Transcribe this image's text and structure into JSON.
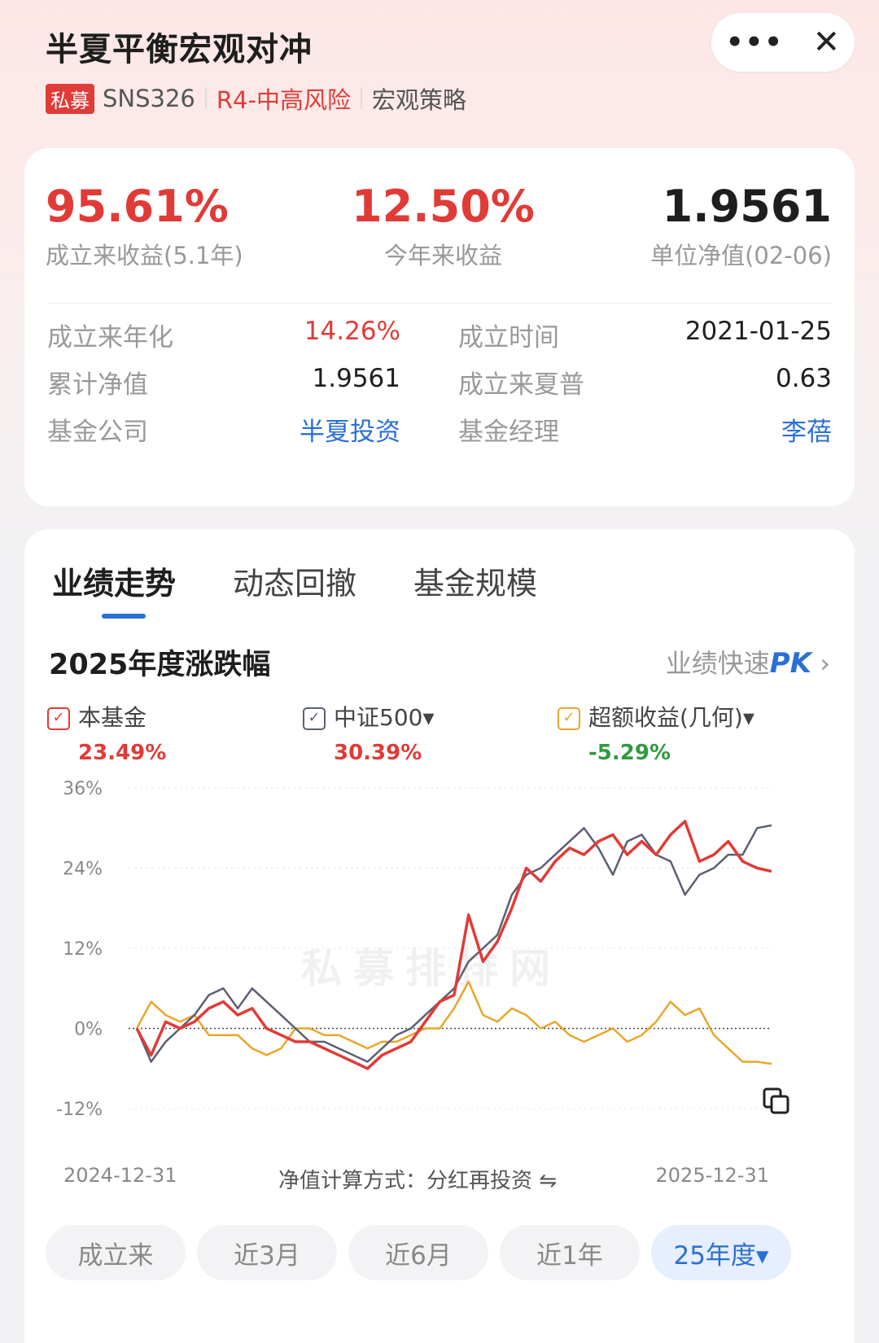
{
  "header": {
    "title": "半夏平衡宏观对冲",
    "tag_private": "私募",
    "code": "SNS326",
    "risk": "R4-中高风险",
    "strategy": "宏观策略",
    "more_icon": "more-icon",
    "close_icon": "close-icon"
  },
  "summary": {
    "since_inception": {
      "value": "95.61%",
      "label": "成立来收益(5.1年)"
    },
    "ytd": {
      "value": "12.50%",
      "label": "今年来收益"
    },
    "nav": {
      "value": "1.9561",
      "label": "单位净值(02-06)"
    }
  },
  "details": [
    {
      "l1": "成立来年化",
      "v1": "14.26%",
      "l2": "成立时间",
      "v2": "2021-01-25"
    },
    {
      "l1": "累计净值",
      "v1": "1.9561",
      "l2": "成立来夏普",
      "v2": "0.63"
    },
    {
      "l1": "基金公司",
      "v1": "半夏投资",
      "l2": "基金经理",
      "v2": "李蓓"
    }
  ],
  "tabs": [
    "业绩走势",
    "动态回撤",
    "基金规模"
  ],
  "section": {
    "title": "2025年度涨跌幅",
    "pk_label": "业绩快速",
    "pk_bold": "PK"
  },
  "legend": [
    {
      "name": "本基金",
      "value": "23.49%",
      "color": "#e03b37",
      "value_color": "#e03b37"
    },
    {
      "name": "中证500▾",
      "value": "30.39%",
      "color": "#5a6070",
      "value_color": "#e03b37"
    },
    {
      "name": "超额收益(几何)▾",
      "value": "-5.29%",
      "color": "#e9a62a",
      "value_color": "#2f9a3f"
    }
  ],
  "watermark": "私募排排网",
  "footer": {
    "start": "2024-12-31",
    "method": "净值计算方式：分红再投资",
    "end": "2025-12-31",
    "swap_icon": "swap-icon"
  },
  "ranges": [
    "成立来",
    "近3月",
    "近6月",
    "近1年",
    "25年度▾"
  ],
  "chart_data": {
    "type": "line",
    "ylim": [
      -12,
      36
    ],
    "yticks": [
      "36%",
      "24%",
      "12%",
      "0%",
      "-12%"
    ],
    "x_start": "2024-12-31",
    "x_end": "2025-12-31",
    "series": [
      {
        "name": "本基金",
        "color": "#e03b37",
        "values": [
          0,
          -4,
          1,
          0,
          1,
          3,
          4,
          2,
          3,
          0,
          -1,
          -2,
          -2,
          -3,
          -4,
          -5,
          -6,
          -4,
          -3,
          -2,
          1,
          4,
          5,
          17,
          10,
          13,
          18,
          24,
          22,
          25,
          27,
          26,
          28,
          29,
          26,
          28,
          26,
          29,
          31,
          25,
          26,
          28,
          25,
          24,
          23.5
        ]
      },
      {
        "name": "中证500",
        "color": "#5a6070",
        "values": [
          0,
          -5,
          -2,
          0,
          2,
          5,
          6,
          3,
          6,
          4,
          2,
          0,
          -2,
          -2,
          -3,
          -4,
          -5,
          -3,
          -1,
          0,
          2,
          4,
          6,
          10,
          12,
          14,
          20,
          23,
          24,
          26,
          28,
          30,
          27,
          23,
          28,
          29,
          26,
          25,
          20,
          23,
          24,
          26,
          26,
          30,
          30.4
        ]
      },
      {
        "name": "超额收益(几何)",
        "color": "#e9a62a",
        "values": [
          0,
          4,
          2,
          1,
          2,
          -1,
          -1,
          -1,
          -3,
          -4,
          -3,
          0,
          0,
          -1,
          -1,
          -2,
          -3,
          -2,
          -2,
          -1,
          0,
          0,
          3,
          7,
          2,
          1,
          3,
          2,
          0,
          1,
          -1,
          -2,
          -1,
          0,
          -2,
          -1,
          1,
          4,
          2,
          3,
          -1,
          -3,
          -5,
          -5,
          -5.3
        ]
      }
    ]
  }
}
